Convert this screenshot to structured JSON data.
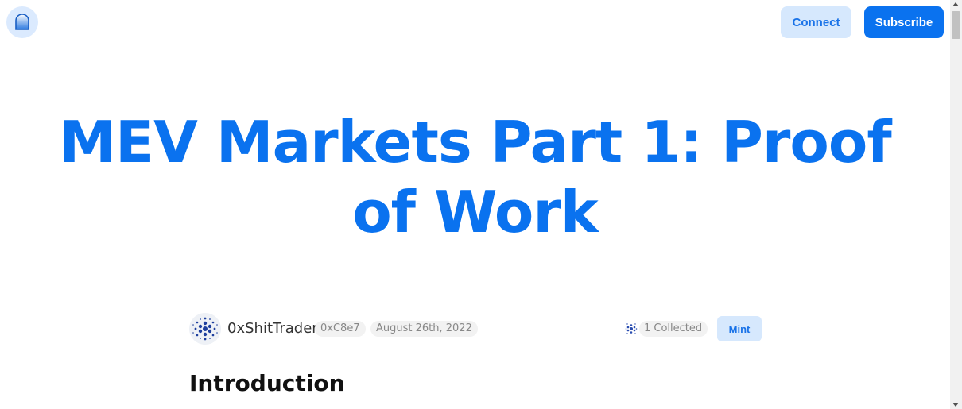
{
  "header": {
    "logo_icon": "arch-window-icon",
    "connect_label": "Connect",
    "subscribe_label": "Subscribe"
  },
  "article": {
    "title": "MEV Markets Part 1: Proof of Work",
    "author": {
      "name": "0xShitTrader",
      "address": "0xC8e7",
      "avatar_icon": "dotted-circle-avatar-icon"
    },
    "date": "August 26th, 2022",
    "collected": "1 Collected",
    "mint_label": "Mint",
    "section_heading": "Introduction"
  },
  "colors": {
    "accent": "#0a72ef",
    "accent_soft": "#d6e8fd",
    "pill_bg": "#f2f2f2"
  }
}
